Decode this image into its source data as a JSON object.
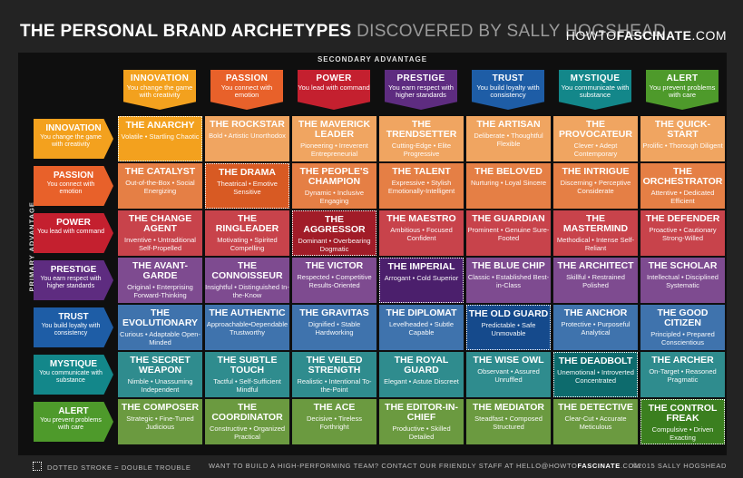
{
  "header": {
    "title_main": "THE PERSONAL BRAND ARCHETYPES",
    "title_sub": "DISCOVERED BY SALLY HOGSHEAD",
    "site_pre": "HOWTO",
    "site_bold": "FASCINATE",
    "site_post": ".COM"
  },
  "axis": {
    "secondary": "SECONDARY ADVANTAGE",
    "primary": "PRIMARY ADVANTAGE"
  },
  "advantages": [
    {
      "name": "INNOVATION",
      "desc": "You change the game with creativity",
      "color": "#f3a11e"
    },
    {
      "name": "PASSION",
      "desc": "You connect with emotion",
      "color": "#e8612a"
    },
    {
      "name": "POWER",
      "desc": "You lead with command",
      "color": "#c4202f"
    },
    {
      "name": "PRESTIGE",
      "desc": "You earn respect with higher standards",
      "color": "#5e2c80"
    },
    {
      "name": "TRUST",
      "desc": "You build loyalty with consistency",
      "color": "#1e5da6"
    },
    {
      "name": "MYSTIQUE",
      "desc": "You communicate with substance",
      "color": "#13878a"
    },
    {
      "name": "ALERT",
      "desc": "You prevent problems with care",
      "color": "#4e9a2b"
    }
  ],
  "matrix": [
    [
      {
        "name": "THE ANARCHY",
        "desc": "Volatile • Startling Chaotic"
      },
      {
        "name": "THE ROCKSTAR",
        "desc": "Bold • Artistic Unorthodox"
      },
      {
        "name": "THE MAVERICK LEADER",
        "desc": "Pioneering • Irreverent Entrepreneurial"
      },
      {
        "name": "THE TRENDSETTER",
        "desc": "Cutting-Edge • Elite Progressive"
      },
      {
        "name": "THE ARTISAN",
        "desc": "Deliberate • Thoughtful Flexible"
      },
      {
        "name": "THE PROVOCATEUR",
        "desc": "Clever • Adept Contemporary"
      },
      {
        "name": "THE QUICK-START",
        "desc": "Prolific • Thorough Diligent"
      }
    ],
    [
      {
        "name": "THE CATALYST",
        "desc": "Out-of-the-Box • Social Energizing"
      },
      {
        "name": "THE DRAMA",
        "desc": "Theatrical • Emotive Sensitive"
      },
      {
        "name": "THE PEOPLE'S CHAMPION",
        "desc": "Dynamic • Inclusive Engaging"
      },
      {
        "name": "THE TALENT",
        "desc": "Expressive • Stylish Emotionally-Intelligent"
      },
      {
        "name": "THE BELOVED",
        "desc": "Nurturing • Loyal Sincere"
      },
      {
        "name": "THE INTRIGUE",
        "desc": "Discerning • Perceptive Considerate"
      },
      {
        "name": "THE ORCHESTRATOR",
        "desc": "Attentive • Dedicated Efficient"
      }
    ],
    [
      {
        "name": "THE CHANGE AGENT",
        "desc": "Inventive • Untraditional Self-Propelled"
      },
      {
        "name": "THE RINGLEADER",
        "desc": "Motivating • Spirited Compelling"
      },
      {
        "name": "THE AGGRESSOR",
        "desc": "Dominant • Overbearing Dogmatic"
      },
      {
        "name": "THE MAESTRO",
        "desc": "Ambitious • Focused Confident"
      },
      {
        "name": "THE GUARDIAN",
        "desc": "Prominent • Genuine Sure-Footed"
      },
      {
        "name": "THE MASTERMIND",
        "desc": "Methodical • Intense Self-Reliant"
      },
      {
        "name": "THE DEFENDER",
        "desc": "Proactive • Cautionary Strong-Willed"
      }
    ],
    [
      {
        "name": "THE AVANT-GARDE",
        "desc": "Original • Enterprising Forward-Thinking"
      },
      {
        "name": "THE CONNOISSEUR",
        "desc": "Insightful • Distinguished In-the-Know"
      },
      {
        "name": "THE VICTOR",
        "desc": "Respected • Competitive Results-Oriented"
      },
      {
        "name": "THE IMPERIAL",
        "desc": "Arrogant • Cold Superior"
      },
      {
        "name": "THE BLUE CHIP",
        "desc": "Classic • Established Best-in-Class"
      },
      {
        "name": "THE ARCHITECT",
        "desc": "Skillful • Restrained Polished"
      },
      {
        "name": "THE SCHOLAR",
        "desc": "Intellectual • Disciplined Systematic"
      }
    ],
    [
      {
        "name": "THE EVOLUTIONARY",
        "desc": "Curious • Adaptable Open-Minded"
      },
      {
        "name": "THE AUTHENTIC",
        "desc": "Approachable•Dependable Trustworthy"
      },
      {
        "name": "THE GRAVITAS",
        "desc": "Dignified • Stable Hardworking"
      },
      {
        "name": "THE DIPLOMAT",
        "desc": "Levelheaded • Subtle Capable"
      },
      {
        "name": "THE OLD GUARD",
        "desc": "Predictable • Safe Unmovable"
      },
      {
        "name": "THE ANCHOR",
        "desc": "Protective • Purposeful Analytical"
      },
      {
        "name": "THE GOOD CITIZEN",
        "desc": "Principled • Prepared Conscientious"
      }
    ],
    [
      {
        "name": "THE SECRET WEAPON",
        "desc": "Nimble • Unassuming Independent"
      },
      {
        "name": "THE SUBTLE TOUCH",
        "desc": "Tactful • Self-Sufficient Mindful"
      },
      {
        "name": "THE VEILED STRENGTH",
        "desc": "Realistic • Intentional To-the-Point"
      },
      {
        "name": "THE ROYAL GUARD",
        "desc": "Elegant • Astute Discreet"
      },
      {
        "name": "THE WISE OWL",
        "desc": "Observant • Assured Unruffled"
      },
      {
        "name": "THE DEADBOLT",
        "desc": "Unemotional • Introverted Concentrated"
      },
      {
        "name": "THE ARCHER",
        "desc": "On-Target • Reasoned Pragmatic"
      }
    ],
    [
      {
        "name": "THE COMPOSER",
        "desc": "Strategic • Fine-Tuned Judicious"
      },
      {
        "name": "THE COORDINATOR",
        "desc": "Constructive • Organized Practical"
      },
      {
        "name": "THE ACE",
        "desc": "Decisive • Tireless Forthright"
      },
      {
        "name": "THE EDITOR-IN-CHIEF",
        "desc": "Productive • Skilled Detailed"
      },
      {
        "name": "THE MEDIATOR",
        "desc": "Steadfast • Composed Structured"
      },
      {
        "name": "THE DETECTIVE",
        "desc": "Clear-Cut • Accurate Meticulous"
      },
      {
        "name": "THE CONTROL FREAK",
        "desc": "Compulsive • Driven Exacting"
      }
    ]
  ],
  "row_colors": [
    "#f0a561",
    "#e57f45",
    "#c8434b",
    "#7e4b90",
    "#3f73ad",
    "#2f8c8e",
    "#6b9a40"
  ],
  "diag_colors": [
    "#f3a11e",
    "#d85a23",
    "#a11c28",
    "#4b1f6c",
    "#154a8c",
    "#0d6b6d",
    "#3b7f1f"
  ],
  "footer": {
    "legend": "DOTTED STROKE = DOUBLE TROUBLE",
    "cta_pre": "WANT TO BUILD A HIGH-PERFORMING TEAM? CONTACT OUR FRIENDLY STAFF AT HELLO@HOWTO",
    "cta_bold": "FASCINATE",
    "cta_post": ".COM",
    "copyright": "©2015 SALLY HOGSHEAD"
  }
}
